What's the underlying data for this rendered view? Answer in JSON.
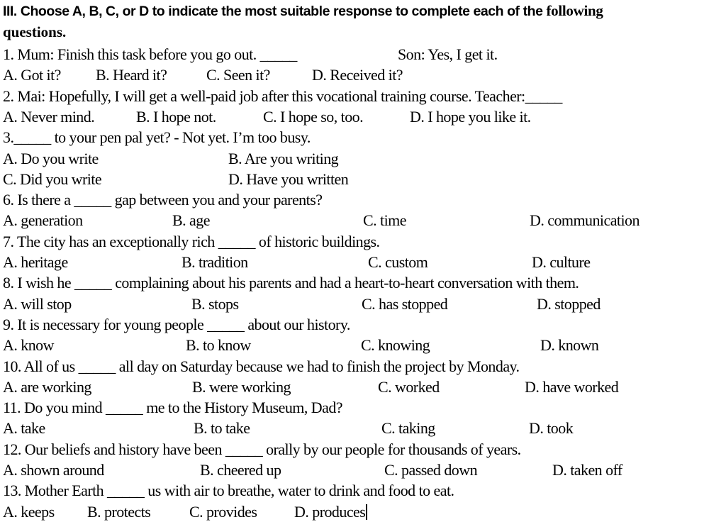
{
  "instructions": {
    "line1": "III. Choose A, B, C, or D to indicate the most suitable response to complete each of the ",
    "line1_end": "following",
    "line2": "questions."
  },
  "questions": [
    {
      "stem": "1. Mum: Finish this task before you go out. _____",
      "response": "Son: Yes, I get it.",
      "options": [
        "A. Got it?",
        "B. Heard it?",
        "C. Seen it?",
        "D. Received it?"
      ]
    },
    {
      "stem": "2. Mai: Hopefully, I will get a well-paid job after this vocational training course.  Teacher:_____",
      "options": [
        "A. Never mind.",
        "B. I hope not.",
        "C. I hope so, too.",
        "D. I hope you like it."
      ]
    },
    {
      "stem": "3._____ to your pen pal yet? - Not yet. I’m too busy.",
      "options": [
        "A. Do you write",
        "B. Are you writing",
        "C. Did you write",
        "D. Have you written"
      ]
    },
    {
      "stem": "6. Is there a _____ gap between you and your parents?",
      "options": [
        "A. generation",
        "B. age",
        "C. time",
        "D. communication"
      ]
    },
    {
      "stem": "7. The city has an exceptionally rich _____ of historic buildings.",
      "options": [
        "A. heritage",
        "B. tradition",
        "C. custom",
        "D. culture"
      ]
    },
    {
      "stem": "8. I wish he _____ complaining about his parents and had a heart-to-heart conversation with them.",
      "options": [
        "A. will stop",
        "B. stops",
        "C. has stopped",
        "D. stopped"
      ]
    },
    {
      "stem": "9. It is necessary for young people _____ about our history.",
      "options": [
        "A. know",
        "B. to know",
        "C. knowing",
        "D. known"
      ]
    },
    {
      "stem": "10. All of us _____ all day on Saturday because we had to finish the project by Monday.",
      "options": [
        "A. are working",
        "B. were working",
        "C. worked",
        "D. have worked"
      ]
    },
    {
      "stem": "11. Do you mind _____ me to the History Museum, Dad?",
      "options": [
        "A. take",
        "B. to take",
        "C. taking",
        "D. took"
      ]
    },
    {
      "stem": "12. Our beliefs and history have been _____ orally by our people for thousands of years.",
      "options": [
        "A. shown around",
        "B. cheered up",
        "C. passed down",
        "D. taken off"
      ]
    },
    {
      "stem": "13. Mother Earth _____ us with air to breathe, water to drink and food to eat.",
      "options": [
        "A. keeps",
        "B. protects",
        "C. provides",
        "D. produces"
      ]
    }
  ]
}
